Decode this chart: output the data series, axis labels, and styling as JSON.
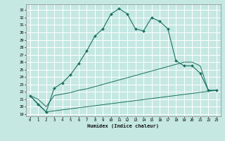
{
  "xlabel": "Humidex (Indice chaleur)",
  "background_color": "#c5e8e3",
  "grid_color": "#ffffff",
  "line_color": "#1a7060",
  "xlim": [
    -0.5,
    23.5
  ],
  "ylim": [
    18.7,
    33.8
  ],
  "yticks": [
    19,
    20,
    21,
    22,
    23,
    24,
    25,
    26,
    27,
    28,
    29,
    30,
    31,
    32,
    33
  ],
  "xticks": [
    0,
    1,
    2,
    3,
    4,
    5,
    6,
    7,
    8,
    9,
    10,
    11,
    12,
    13,
    14,
    15,
    16,
    17,
    18,
    19,
    20,
    21,
    22,
    23
  ],
  "series1_x": [
    0,
    1,
    2,
    3,
    4,
    5,
    6,
    7,
    8,
    9,
    10,
    11,
    12,
    13,
    14,
    15,
    16,
    17,
    18,
    19,
    20,
    21,
    22,
    23
  ],
  "series1_y": [
    21.5,
    20.3,
    19.3,
    22.5,
    23.2,
    24.3,
    25.8,
    27.5,
    29.5,
    30.5,
    32.5,
    33.2,
    32.5,
    30.5,
    30.2,
    32.0,
    31.5,
    30.5,
    26.2,
    25.5,
    25.5,
    24.5,
    22.2,
    22.2
  ],
  "series2_x": [
    0,
    1,
    2,
    3,
    4,
    5,
    6,
    7,
    8,
    9,
    10,
    11,
    12,
    13,
    14,
    15,
    16,
    17,
    18,
    19,
    20,
    21,
    22,
    23
  ],
  "series2_y": [
    21.5,
    21.0,
    20.0,
    21.5,
    21.7,
    21.9,
    22.2,
    22.4,
    22.7,
    23.0,
    23.3,
    23.6,
    23.9,
    24.2,
    24.5,
    24.8,
    25.1,
    25.4,
    25.7,
    26.0,
    26.0,
    25.5,
    22.2,
    22.2
  ],
  "series3_x": [
    0,
    2,
    23
  ],
  "series3_y": [
    21.5,
    19.3,
    22.2
  ]
}
